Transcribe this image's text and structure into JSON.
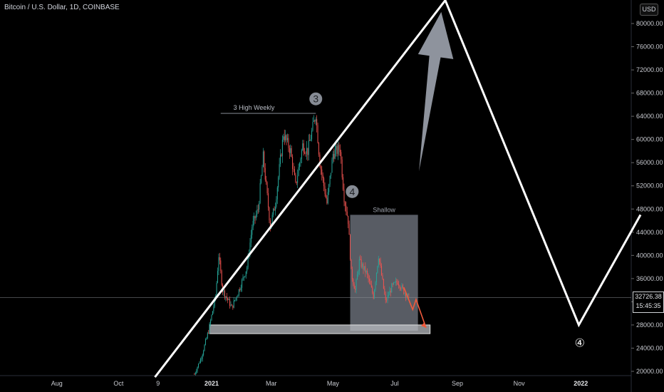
{
  "header": {
    "title": "Bitcoin / U.S. Dollar, 1D, COINBASE"
  },
  "currency_button": "USD",
  "last_price": {
    "value": "32726.38",
    "countdown": "15:45:35"
  },
  "annotations": {
    "high_label": "3 High Weekly",
    "wave3": "3",
    "wave4_box": "4",
    "shallow": "Shallow",
    "wave4_target": "④"
  },
  "colors": {
    "background": "#000000",
    "up_candle": "#26a69a",
    "down_candle": "#ef5350",
    "projection_line": "#ffffff",
    "arrow": "#9aa0aa",
    "box_fill": "#8e94a2",
    "support_zone": "#b9bcc2",
    "target_arrow": "#f05a3c"
  },
  "chart_data": {
    "type": "candlestick",
    "title": "Bitcoin / U.S. Dollar, 1D, COINBASE",
    "ylabel": "USD",
    "ylim": [
      19000,
      84000
    ],
    "y_ticks": [
      20000,
      24000,
      28000,
      32000,
      36000,
      40000,
      44000,
      48000,
      52000,
      56000,
      60000,
      64000,
      68000,
      72000,
      76000,
      80000
    ],
    "y_tick_labels": [
      "20000.00",
      "24000.00",
      "28000.00",
      "32000.00",
      "36000.00",
      "40000.00",
      "44000.00",
      "48000.00",
      "52000.00",
      "56000.00",
      "60000.00",
      "64000.00",
      "68000.00",
      "72000.00",
      "76000.00",
      "80000.00"
    ],
    "x_ticks": [
      {
        "label": "Aug",
        "date": "2020-08-01"
      },
      {
        "label": "Oct",
        "date": "2020-10-01"
      },
      {
        "label": "9",
        "date": "2020-11-09"
      },
      {
        "label": "2021",
        "date": "2021-01-01",
        "bold": true
      },
      {
        "label": "Mar",
        "date": "2021-03-01"
      },
      {
        "label": "May",
        "date": "2021-05-01"
      },
      {
        "label": "Jul",
        "date": "2021-07-01"
      },
      {
        "label": "Sep",
        "date": "2021-09-01"
      },
      {
        "label": "Nov",
        "date": "2021-11-01"
      },
      {
        "label": "2022",
        "date": "2022-01-01",
        "bold": true
      }
    ],
    "price_path": [
      {
        "date": "2020-12-15",
        "price": 19500
      },
      {
        "date": "2020-12-22",
        "price": 22500
      },
      {
        "date": "2020-12-29",
        "price": 27000
      },
      {
        "date": "2021-01-05",
        "price": 33000
      },
      {
        "date": "2021-01-08",
        "price": 40000
      },
      {
        "date": "2021-01-12",
        "price": 34000
      },
      {
        "date": "2021-01-21",
        "price": 31000
      },
      {
        "date": "2021-01-28",
        "price": 34000
      },
      {
        "date": "2021-02-05",
        "price": 38000
      },
      {
        "date": "2021-02-10",
        "price": 45000
      },
      {
        "date": "2021-02-16",
        "price": 48000
      },
      {
        "date": "2021-02-21",
        "price": 57000
      },
      {
        "date": "2021-02-28",
        "price": 45000
      },
      {
        "date": "2021-03-05",
        "price": 49000
      },
      {
        "date": "2021-03-13",
        "price": 61000
      },
      {
        "date": "2021-03-20",
        "price": 58000
      },
      {
        "date": "2021-03-25",
        "price": 52000
      },
      {
        "date": "2021-04-01",
        "price": 59000
      },
      {
        "date": "2021-04-06",
        "price": 58000
      },
      {
        "date": "2021-04-14",
        "price": 64500
      },
      {
        "date": "2021-04-18",
        "price": 56000
      },
      {
        "date": "2021-04-25",
        "price": 49000
      },
      {
        "date": "2021-05-01",
        "price": 57500
      },
      {
        "date": "2021-05-08",
        "price": 58500
      },
      {
        "date": "2021-05-12",
        "price": 50000
      },
      {
        "date": "2021-05-16",
        "price": 46000
      },
      {
        "date": "2021-05-19",
        "price": 37000
      },
      {
        "date": "2021-05-23",
        "price": 34000
      },
      {
        "date": "2021-05-27",
        "price": 39000
      },
      {
        "date": "2021-06-03",
        "price": 37000
      },
      {
        "date": "2021-06-10",
        "price": 33000
      },
      {
        "date": "2021-06-15",
        "price": 40000
      },
      {
        "date": "2021-06-22",
        "price": 32000
      },
      {
        "date": "2021-06-28",
        "price": 34500
      },
      {
        "date": "2021-07-04",
        "price": 35500
      },
      {
        "date": "2021-07-10",
        "price": 33800
      },
      {
        "date": "2021-07-15",
        "price": 32726.38
      }
    ],
    "last_price": 32726.38,
    "high_weekly": 64500,
    "projection_path": [
      {
        "date": "2020-11-06",
        "price": 19000
      },
      {
        "date": "2021-08-20",
        "price": 84000
      },
      {
        "date": "2021-12-30",
        "price": 28000
      },
      {
        "date": "2022-03-01",
        "price": 47000
      }
    ],
    "support_zone": {
      "from": "2020-12-30",
      "to": "2021-08-05",
      "top": 28000,
      "bottom": 26500
    },
    "shallow_box": {
      "from": "2021-05-18",
      "to": "2021-07-24",
      "top": 47000,
      "bottom": 27000
    },
    "wave_labels": [
      {
        "label": "3",
        "date": "2021-04-14",
        "price": 67000
      },
      {
        "label": "4",
        "date": "2021-05-20",
        "price": 51000
      },
      {
        "label": "④",
        "date": "2021-12-31",
        "price": 25000
      }
    ],
    "arrow": {
      "from": {
        "date": "2021-07-25",
        "price": 54500
      },
      "to": {
        "date": "2021-08-16",
        "price": 82000
      }
    },
    "target_arrow": {
      "from": {
        "date": "2021-07-10",
        "price": 34500
      },
      "to": {
        "date": "2021-08-01",
        "price": 27500
      }
    },
    "legend": "none",
    "grid": false
  }
}
